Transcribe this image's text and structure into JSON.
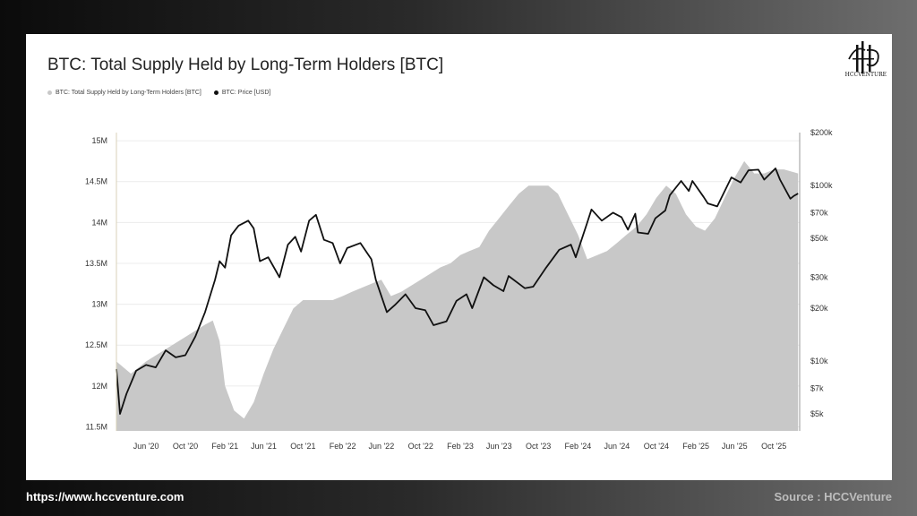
{
  "chart_data": {
    "type": "area",
    "title": "BTC: Total Supply Held by Long-Term Holders [BTC]",
    "legend": [
      "BTC: Total Supply Held by Long-Term Holders [BTC]",
      "BTC: Price [USD]"
    ],
    "x_ticks": [
      "Jun '20",
      "Oct '20",
      "Feb '21",
      "Jun '21",
      "Oct '21",
      "Feb '22",
      "Jun '22",
      "Oct '22",
      "Feb '23",
      "Jun '23",
      "Oct '23",
      "Feb '24",
      "Jun '24",
      "Oct '24",
      "Feb '25",
      "Jun '25",
      "Oct '25"
    ],
    "y_left_ticks": [
      "15M",
      "14.5M",
      "14M",
      "13.5M",
      "13M",
      "12.5M",
      "12M",
      "11.5M"
    ],
    "y_left_range": [
      11450000,
      15100000
    ],
    "y_right_ticks": [
      "$200k",
      "$100k",
      "$70k",
      "$50k",
      "$30k",
      "$20k",
      "$10k",
      "$7k",
      "$5k"
    ],
    "y_right_scale": "log",
    "y_right_range": [
      4000,
      200000
    ],
    "series": [
      {
        "name": "BTC: Total Supply Held by Long-Term Holders [BTC]",
        "color": "#c8c8c8",
        "points": [
          [
            "2020-03-01",
            12300000
          ],
          [
            "2020-04-15",
            12150000
          ],
          [
            "2020-06-01",
            12300000
          ],
          [
            "2020-08-01",
            12450000
          ],
          [
            "2020-10-01",
            12600000
          ],
          [
            "2020-12-01",
            12750000
          ],
          [
            "2020-12-25",
            12800000
          ],
          [
            "2021-01-15",
            12550000
          ],
          [
            "2021-02-01",
            12000000
          ],
          [
            "2021-03-01",
            11700000
          ],
          [
            "2021-04-01",
            11600000
          ],
          [
            "2021-05-01",
            11800000
          ],
          [
            "2021-06-01",
            12150000
          ],
          [
            "2021-07-01",
            12450000
          ],
          [
            "2021-08-01",
            12700000
          ],
          [
            "2021-09-01",
            12950000
          ],
          [
            "2021-10-01",
            13050000
          ],
          [
            "2021-11-01",
            13050000
          ],
          [
            "2021-12-01",
            13050000
          ],
          [
            "2022-01-01",
            13050000
          ],
          [
            "2022-02-01",
            13100000
          ],
          [
            "2022-03-01",
            13150000
          ],
          [
            "2022-04-01",
            13200000
          ],
          [
            "2022-05-01",
            13250000
          ],
          [
            "2022-06-01",
            13300000
          ],
          [
            "2022-07-01",
            13100000
          ],
          [
            "2022-08-01",
            13150000
          ],
          [
            "2022-10-01",
            13300000
          ],
          [
            "2022-12-01",
            13450000
          ],
          [
            "2023-01-01",
            13500000
          ],
          [
            "2023-02-01",
            13600000
          ],
          [
            "2023-03-01",
            13650000
          ],
          [
            "2023-04-01",
            13700000
          ],
          [
            "2023-05-01",
            13900000
          ],
          [
            "2023-06-01",
            14050000
          ],
          [
            "2023-07-01",
            14200000
          ],
          [
            "2023-08-01",
            14350000
          ],
          [
            "2023-09-01",
            14450000
          ],
          [
            "2023-10-01",
            14450000
          ],
          [
            "2023-11-01",
            14450000
          ],
          [
            "2023-12-01",
            14350000
          ],
          [
            "2024-01-01",
            14100000
          ],
          [
            "2024-02-01",
            13850000
          ],
          [
            "2024-03-01",
            13550000
          ],
          [
            "2024-04-01",
            13600000
          ],
          [
            "2024-05-01",
            13650000
          ],
          [
            "2024-06-01",
            13750000
          ],
          [
            "2024-07-01",
            13850000
          ],
          [
            "2024-08-01",
            13950000
          ],
          [
            "2024-09-01",
            14100000
          ],
          [
            "2024-10-01",
            14300000
          ],
          [
            "2024-11-01",
            14450000
          ],
          [
            "2024-12-01",
            14350000
          ],
          [
            "2025-01-01",
            14100000
          ],
          [
            "2025-02-01",
            13950000
          ],
          [
            "2025-03-01",
            13900000
          ],
          [
            "2025-04-01",
            14050000
          ],
          [
            "2025-05-01",
            14300000
          ],
          [
            "2025-06-01",
            14550000
          ],
          [
            "2025-07-01",
            14750000
          ],
          [
            "2025-08-01",
            14600000
          ],
          [
            "2025-09-01",
            14600000
          ],
          [
            "2025-10-01",
            14650000
          ],
          [
            "2025-11-01",
            14650000
          ],
          [
            "2025-12-15",
            14600000
          ]
        ]
      },
      {
        "name": "BTC: Price [USD]",
        "color": "#111111",
        "points": [
          [
            "2020-03-01",
            9000
          ],
          [
            "2020-03-12",
            5000
          ],
          [
            "2020-04-01",
            6500
          ],
          [
            "2020-05-01",
            8800
          ],
          [
            "2020-06-01",
            9500
          ],
          [
            "2020-07-01",
            9200
          ],
          [
            "2020-08-01",
            11500
          ],
          [
            "2020-09-01",
            10500
          ],
          [
            "2020-10-01",
            10800
          ],
          [
            "2020-11-01",
            13800
          ],
          [
            "2020-12-01",
            19000
          ],
          [
            "2021-01-01",
            29000
          ],
          [
            "2021-01-15",
            37000
          ],
          [
            "2021-02-01",
            34000
          ],
          [
            "2021-02-20",
            52000
          ],
          [
            "2021-03-15",
            59000
          ],
          [
            "2021-04-14",
            63000
          ],
          [
            "2021-05-01",
            57000
          ],
          [
            "2021-05-20",
            37000
          ],
          [
            "2021-06-15",
            39000
          ],
          [
            "2021-07-20",
            30000
          ],
          [
            "2021-08-15",
            46000
          ],
          [
            "2021-09-07",
            51000
          ],
          [
            "2021-09-25",
            42000
          ],
          [
            "2021-10-20",
            63000
          ],
          [
            "2021-11-10",
            68000
          ],
          [
            "2021-12-05",
            49000
          ],
          [
            "2022-01-01",
            47000
          ],
          [
            "2022-01-24",
            36000
          ],
          [
            "2022-02-15",
            44000
          ],
          [
            "2022-03-28",
            47000
          ],
          [
            "2022-05-01",
            38000
          ],
          [
            "2022-05-15",
            29000
          ],
          [
            "2022-06-18",
            19000
          ],
          [
            "2022-07-15",
            21000
          ],
          [
            "2022-08-15",
            24000
          ],
          [
            "2022-09-15",
            20000
          ],
          [
            "2022-10-15",
            19500
          ],
          [
            "2022-11-10",
            16000
          ],
          [
            "2022-12-20",
            16800
          ],
          [
            "2023-01-20",
            22000
          ],
          [
            "2023-02-20",
            24000
          ],
          [
            "2023-03-10",
            20000
          ],
          [
            "2023-04-15",
            30000
          ],
          [
            "2023-05-15",
            27000
          ],
          [
            "2023-06-15",
            25000
          ],
          [
            "2023-07-01",
            30500
          ],
          [
            "2023-08-20",
            26000
          ],
          [
            "2023-09-15",
            26500
          ],
          [
            "2023-10-25",
            34000
          ],
          [
            "2023-12-05",
            43000
          ],
          [
            "2024-01-10",
            46000
          ],
          [
            "2024-01-25",
            39000
          ],
          [
            "2024-02-28",
            60000
          ],
          [
            "2024-03-14",
            73000
          ],
          [
            "2024-04-15",
            63000
          ],
          [
            "2024-05-20",
            70000
          ],
          [
            "2024-06-15",
            66000
          ],
          [
            "2024-07-05",
            56000
          ],
          [
            "2024-07-28",
            69000
          ],
          [
            "2024-08-05",
            54000
          ],
          [
            "2024-09-06",
            53000
          ],
          [
            "2024-09-28",
            65000
          ],
          [
            "2024-10-29",
            72000
          ],
          [
            "2024-11-12",
            88000
          ],
          [
            "2024-12-17",
            106000
          ],
          [
            "2025-01-10",
            93000
          ],
          [
            "2025-01-21",
            106000
          ],
          [
            "2025-02-25",
            86000
          ],
          [
            "2025-03-10",
            79000
          ],
          [
            "2025-04-08",
            76000
          ],
          [
            "2025-05-22",
            111000
          ],
          [
            "2025-06-20",
            104000
          ],
          [
            "2025-07-14",
            122000
          ],
          [
            "2025-08-14",
            123000
          ],
          [
            "2025-09-01",
            108000
          ],
          [
            "2025-10-06",
            125000
          ],
          [
            "2025-10-20",
            108000
          ],
          [
            "2025-11-21",
            84000
          ],
          [
            "2025-12-01",
            87000
          ],
          [
            "2025-12-15",
            90000
          ]
        ]
      }
    ]
  },
  "brand": {
    "logo_text": "HCCVENTURE"
  },
  "footer": {
    "url": "https://www.hccventure.com",
    "source": "Source : HCCVenture"
  }
}
